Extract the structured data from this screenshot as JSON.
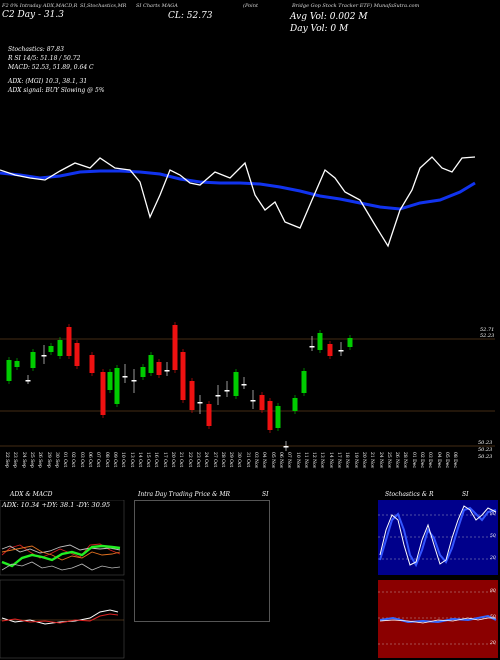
{
  "header": {
    "line1": [
      "F2 0% Intraday ADX,MACD,R",
      "SI,Stochastics,MR",
      "SI Charts MAGA",
      "(Point",
      "Bridge Gop Stock Tracker ETF) MunafaSutra.com"
    ],
    "price_line": "C2 Day - 31.3",
    "close": "CL: 52.73",
    "avg_vol": "Avg Vol: 0.002  M",
    "day_vol": "Day Vol: 0  M",
    "stochastics": "Stochastics: 87.83",
    "rsi": "R         SI 14/5: 51.18 / 50.72",
    "macd": "MACD: 52.53, 51.89, 0.64  C",
    "adx": "ADX:                              (MGI) 10.3, 38.1, 31",
    "adx_signal": "ADX  signal:                                   BUY Slowing @ 5%"
  },
  "price_axis": {
    "top": "52.71",
    "top2": "52.23",
    "bottom1": "50.23",
    "bottom2": "50.23",
    "bottom3": "50.23"
  },
  "dates": [
    "22 Sep",
    "23 Sep",
    "24 Sep",
    "25 Sep",
    "26 Sep",
    "29 Sep",
    "30 Sep",
    "01 Oct",
    "02 Oct",
    "03 Oct",
    "06 Oct",
    "07 Oct",
    "08 Oct",
    "09 Oct",
    "10 Oct",
    "13 Oct",
    "14 Oct",
    "15 Oct",
    "16 Oct",
    "17 Oct",
    "20 Oct",
    "21 Oct",
    "22 Oct",
    "23 Oct",
    "24 Oct",
    "27 Oct",
    "28 Oct",
    "29 Oct",
    "30 Oct",
    "31 Oct",
    "03 Nov",
    "04 Nov",
    "05 Nov",
    "06 Nov",
    "07 Nov",
    "10 Nov",
    "11 Nov",
    "12 Nov",
    "13 Nov",
    "14 Nov",
    "17 Nov",
    "18 Nov",
    "19 Nov",
    "20 Nov",
    "21 Nov",
    "24 Nov",
    "25 Nov",
    "26 Nov",
    "28 Nov",
    "01 Dec",
    "02 Dec",
    "03 Dec",
    "04 Dec",
    "05 Dec",
    "08 Dec"
  ],
  "panels": {
    "adx": {
      "title": "ADX  & MACD",
      "values": "ADX: 10.34  +DY: 38.1  -DY: 30.95"
    },
    "intraday": {
      "title": "Intra  Day Trading Price  & MR",
      "suffix": "SI"
    },
    "stoch": {
      "title": "Stochastics & R",
      "suffix": "SI",
      "levels": [
        "80",
        "50",
        "20"
      ]
    },
    "rsi_levels": [
      "80",
      "50",
      "20"
    ]
  },
  "colors": {
    "up": "#00cc00",
    "down": "#ee1111",
    "ema": "#1133ee",
    "grid": "#8a5a2a"
  }
}
